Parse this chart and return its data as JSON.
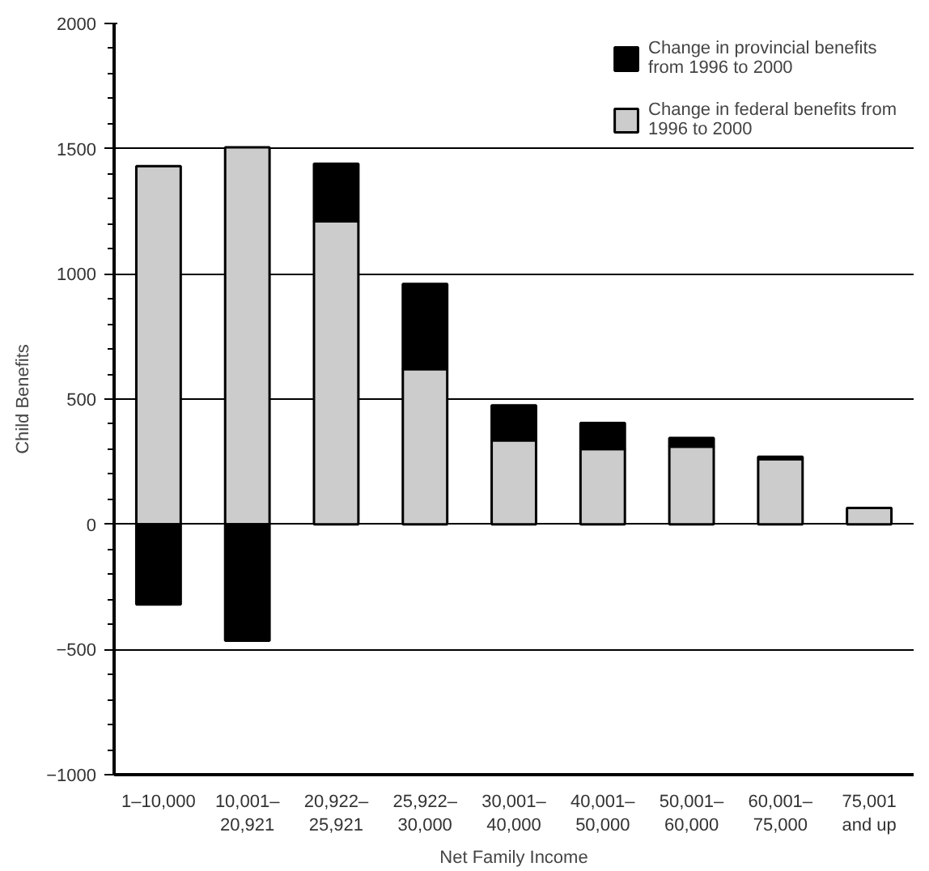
{
  "chart_data": {
    "type": "bar",
    "stacked": true,
    "xlabel": "Net Family Income",
    "ylabel": "Child Benefits",
    "categories": [
      "1–10,000",
      "10,001–\n20,921",
      "20,922–\n25,921",
      "25,922–\n30,000",
      "30,001–\n40,000",
      "40,001–\n50,000",
      "50,001–\n60,000",
      "60,001–\n75,000",
      "75,001\nand up"
    ],
    "series": [
      {
        "name": "Change in federal benefits from 1996 to 2000",
        "color": "#cccccc",
        "values": [
          1430,
          1505,
          1210,
          620,
          335,
          300,
          310,
          260,
          65
        ]
      },
      {
        "name": "Change in provincial benefits from 1996 to 2000",
        "color": "#000000",
        "values": [
          -320,
          -465,
          230,
          340,
          140,
          105,
          35,
          10,
          0
        ]
      }
    ],
    "ylim": [
      -1000,
      2000
    ],
    "yticks": [
      -1000,
      -500,
      0,
      500,
      1000,
      1500,
      2000
    ],
    "grid": "y",
    "legend": "top right"
  }
}
